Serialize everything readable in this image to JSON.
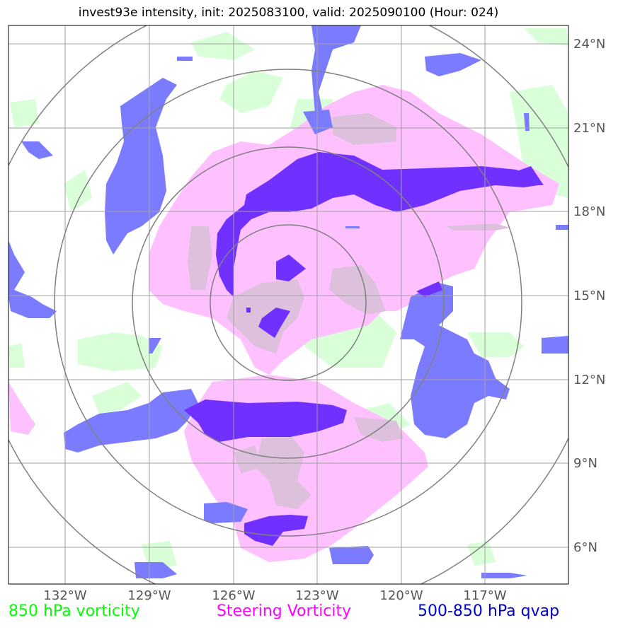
{
  "title": "invest93e intensity, init: 2025083100, valid: 2025090100 (Hour: 024)",
  "lat_labels": [
    "24°N",
    "21°N",
    "18°N",
    "15°N",
    "12°N",
    "9°N",
    "6°N"
  ],
  "lon_labels": [
    "132°W",
    "129°W",
    "126°W",
    "123°W",
    "120°W",
    "117°W"
  ],
  "legend": {
    "vort850": {
      "label": "850 hPa vorticity",
      "color": "#00ff00"
    },
    "steering": {
      "label": "Steering Vorticity",
      "color": "#ff00ff"
    },
    "qvap": {
      "label": "500-850 hPa qvap",
      "color": "#0000cc"
    }
  },
  "colors": {
    "vort_fill": "#d9ffd9",
    "steer_fill": "#ffc0ff",
    "overlap_fill": "#dcc0dc",
    "qvap_fill": "#7b7bff",
    "qvap_dark": "#7030ff",
    "grid": "#a0a0a0",
    "rings": "#808080"
  }
}
